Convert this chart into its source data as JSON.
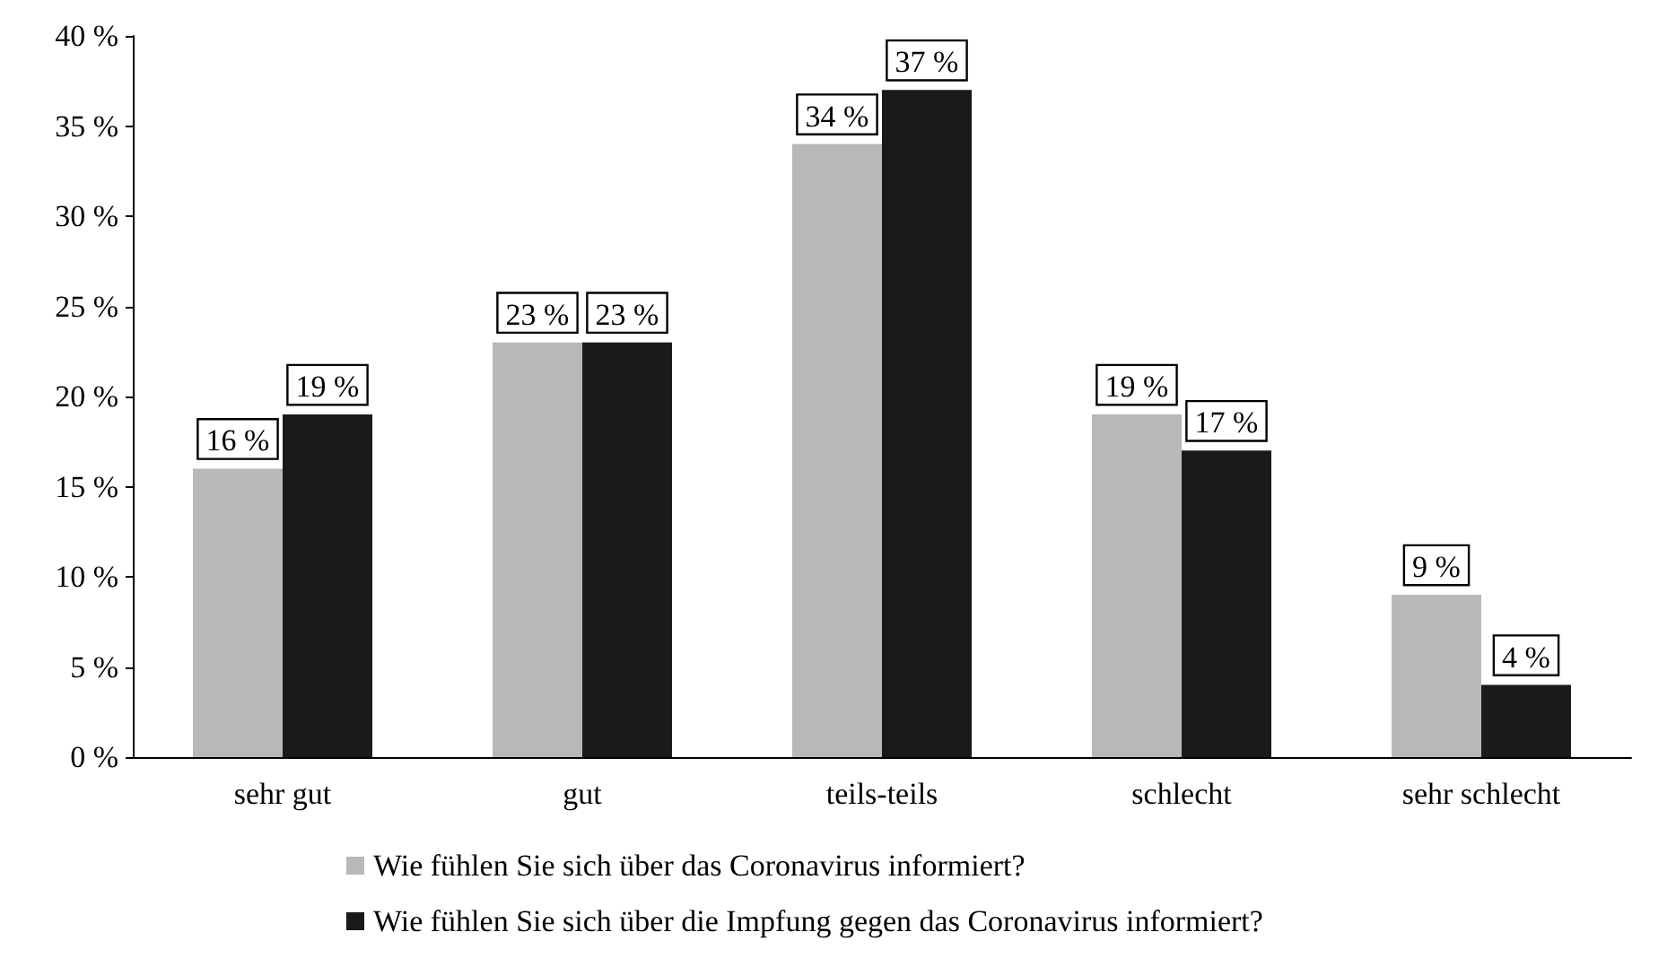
{
  "chart_data": {
    "type": "bar",
    "categories": [
      "sehr gut",
      "gut",
      "teils-teils",
      "schlecht",
      "sehr schlecht"
    ],
    "series": [
      {
        "name": "Wie fühlen Sie sich über das Coronavirus informiert?",
        "color": "#b8b8b8",
        "values": [
          16,
          23,
          34,
          19,
          9
        ],
        "value_labels": [
          "16 %",
          "23 %",
          "34 %",
          "19 %",
          "9 %"
        ]
      },
      {
        "name": "Wie fühlen Sie sich über die Impfung gegen das Coronavirus informiert?",
        "color": "#1a1a1a",
        "values": [
          19,
          23,
          37,
          17,
          4
        ],
        "value_labels": [
          "19 %",
          "23 %",
          "37 %",
          "17 %",
          "4 %"
        ]
      }
    ],
    "ylim": [
      0,
      40
    ],
    "yticks": [
      {
        "value": 0,
        "label": "0 %"
      },
      {
        "value": 5,
        "label": "5 %"
      },
      {
        "value": 10,
        "label": "10 %"
      },
      {
        "value": 15,
        "label": "15 %"
      },
      {
        "value": 20,
        "label": "20 %"
      },
      {
        "value": 25,
        "label": "25 %"
      },
      {
        "value": 30,
        "label": "30 %"
      },
      {
        "value": 35,
        "label": "35 %"
      },
      {
        "value": 40,
        "label": "40 %"
      }
    ],
    "grid": false,
    "legend": "bottom"
  }
}
